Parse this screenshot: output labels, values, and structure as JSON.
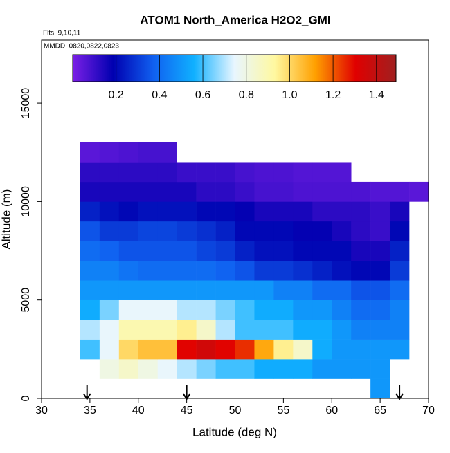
{
  "chart_data": {
    "type": "heatmap",
    "title": "ATOM1 North_America H2O2_GMI",
    "flights_note": "Flts: 9,10,11",
    "dates_note": "MMDD: 0820,0822,0823",
    "x_label": "Latitude (deg N)",
    "y_label": "Altitude (m)",
    "xlim": [
      30,
      70
    ],
    "ylim": [
      0,
      18200
    ],
    "xticks": [
      30,
      35,
      40,
      45,
      50,
      55,
      60,
      65,
      70
    ],
    "yticks": [
      0,
      5000,
      10000,
      15000
    ],
    "x_edges": [
      34,
      36,
      38,
      40,
      42,
      44,
      46,
      48,
      50,
      52,
      54,
      56,
      58,
      60,
      62,
      64,
      66,
      68,
      70,
      72
    ],
    "y_edges": [
      0,
      1000,
      2000,
      3000,
      4000,
      5000,
      6000,
      7000,
      8000,
      9000,
      10000,
      11000,
      12000,
      13000
    ],
    "values": [
      [
        null,
        null,
        null,
        null,
        null,
        null,
        null,
        null,
        null,
        null,
        null,
        null,
        null,
        null,
        null,
        0.5,
        null,
        null,
        null
      ],
      [
        null,
        0.8,
        0.85,
        0.8,
        0.75,
        0.7,
        0.65,
        0.6,
        0.6,
        0.55,
        0.55,
        0.55,
        0.5,
        0.5,
        0.5,
        0.5,
        null,
        null,
        null
      ],
      [
        0.6,
        0.75,
        1.0,
        1.05,
        1.05,
        1.3,
        1.35,
        1.3,
        1.25,
        1.1,
        0.95,
        0.85,
        0.55,
        0.5,
        0.5,
        0.5,
        0.5,
        null,
        null
      ],
      [
        0.7,
        0.75,
        0.9,
        0.9,
        0.9,
        0.95,
        0.85,
        0.7,
        0.6,
        0.6,
        0.6,
        0.55,
        0.55,
        0.5,
        0.45,
        0.45,
        0.45,
        null,
        null
      ],
      [
        0.55,
        0.65,
        0.75,
        0.75,
        0.75,
        0.7,
        0.7,
        0.65,
        0.6,
        0.55,
        0.55,
        0.5,
        0.5,
        0.45,
        0.4,
        0.4,
        0.45,
        null,
        null
      ],
      [
        0.5,
        0.5,
        0.5,
        0.5,
        0.5,
        0.5,
        0.5,
        0.5,
        0.5,
        0.5,
        0.45,
        0.45,
        0.4,
        0.4,
        0.35,
        0.35,
        0.4,
        null,
        null
      ],
      [
        0.45,
        0.45,
        0.42,
        0.4,
        0.4,
        0.4,
        0.4,
        0.38,
        0.35,
        0.3,
        0.3,
        0.28,
        0.25,
        0.22,
        0.2,
        0.2,
        0.3,
        null,
        null
      ],
      [
        0.4,
        0.38,
        0.35,
        0.35,
        0.35,
        0.35,
        0.32,
        0.3,
        0.25,
        0.22,
        0.22,
        0.2,
        0.2,
        0.2,
        0.15,
        0.15,
        0.25,
        null,
        null
      ],
      [
        0.35,
        0.3,
        0.3,
        0.32,
        0.32,
        0.3,
        0.28,
        0.25,
        0.2,
        0.2,
        0.2,
        0.18,
        0.18,
        0.15,
        0.12,
        0.1,
        0.2,
        null,
        null
      ],
      [
        0.25,
        0.22,
        0.2,
        0.22,
        0.22,
        0.22,
        0.2,
        0.2,
        0.18,
        0.15,
        0.15,
        0.15,
        0.12,
        0.12,
        0.12,
        0.1,
        0.15,
        null,
        null
      ],
      [
        0.15,
        0.15,
        0.15,
        0.15,
        0.15,
        0.15,
        0.12,
        0.12,
        0.1,
        0.08,
        0.08,
        0.07,
        0.07,
        0.07,
        0.07,
        0.06,
        0.06,
        0.05,
        null
      ],
      [
        0.12,
        0.12,
        0.12,
        0.12,
        0.12,
        0.1,
        0.1,
        0.1,
        0.08,
        0.07,
        0.07,
        0.06,
        0.06,
        0.06,
        null,
        null,
        null,
        null,
        null
      ],
      [
        0.05,
        0.06,
        0.07,
        0.08,
        0.08,
        null,
        null,
        null,
        null,
        null,
        null,
        null,
        null,
        null,
        null,
        null,
        null,
        null,
        null
      ]
    ],
    "clim": [
      0,
      1.49
    ],
    "colorbar_ticks": [
      0.2,
      0.4,
      0.6,
      0.8,
      1.0,
      1.2,
      1.4
    ],
    "colormap": [
      "#7b1fe6",
      "#0000b0",
      "#1060f0",
      "#10b0ff",
      "#e8f6ff",
      "#fff8a0",
      "#ffa000",
      "#e00000",
      "#a02020"
    ],
    "arrows_x": [
      34.7,
      45,
      67
    ]
  }
}
